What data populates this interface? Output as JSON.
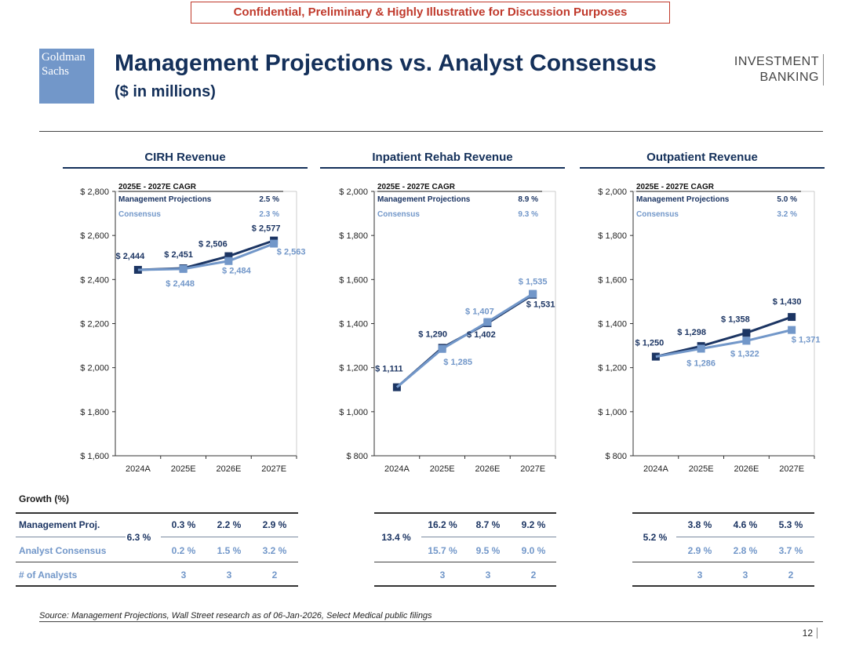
{
  "banner": "Confidential, Preliminary & Highly Illustrative for Discussion Purposes",
  "logo": {
    "line1": "Goldman",
    "line2": "Sachs"
  },
  "header": {
    "title": "Management Projections vs. Analyst Consensus",
    "subtitle": "($ in millions)"
  },
  "brand": {
    "line1": "INVESTMENT",
    "line2": "BANKING"
  },
  "colors": {
    "management": "#1c3563",
    "consensus": "#7297c9",
    "title": "#14305a"
  },
  "chart_data": [
    {
      "type": "line",
      "title": "CIRH Revenue",
      "categories": [
        "2024A",
        "2025E",
        "2026E",
        "2027E"
      ],
      "ylim": [
        1600,
        2800
      ],
      "yticks": [
        1600,
        1800,
        2000,
        2200,
        2400,
        2600,
        2800
      ],
      "ytick_labels": [
        "$ 1,600",
        "$ 1,800",
        "$ 2,000",
        "$ 2,200",
        "$ 2,400",
        "$ 2,600",
        "$ 2,800"
      ],
      "series": [
        {
          "name": "Management Projections",
          "values": [
            2444,
            2451,
            2506,
            2577
          ],
          "labels": [
            "$ 2,444",
            "$ 2,451",
            "$ 2,506",
            "$ 2,577"
          ]
        },
        {
          "name": "Consensus",
          "values": [
            null,
            2448,
            2484,
            2563
          ],
          "labels": [
            "",
            "$ 2,448",
            "$ 2,484",
            "$ 2,563"
          ]
        }
      ],
      "cagr": {
        "header": "2025E - 2027E CAGR",
        "management": "2.5 %",
        "consensus": "2.3 %"
      }
    },
    {
      "type": "line",
      "title": "Inpatient Rehab Revenue",
      "categories": [
        "2024A",
        "2025E",
        "2026E",
        "2027E"
      ],
      "ylim": [
        800,
        2000
      ],
      "yticks": [
        800,
        1000,
        1200,
        1400,
        1600,
        1800,
        2000
      ],
      "ytick_labels": [
        "$ 800",
        "$ 1,000",
        "$ 1,200",
        "$ 1,400",
        "$ 1,600",
        "$ 1,800",
        "$ 2,000"
      ],
      "series": [
        {
          "name": "Management Projections",
          "values": [
            1111,
            1290,
            1402,
            1531
          ],
          "labels": [
            "$ 1,111",
            "$ 1,290",
            "$ 1,402",
            "$ 1,531"
          ]
        },
        {
          "name": "Consensus",
          "values": [
            null,
            1285,
            1407,
            1535
          ],
          "labels": [
            "",
            "$ 1,285",
            "$ 1,407",
            "$ 1,535"
          ]
        }
      ],
      "cagr": {
        "header": "2025E - 2027E CAGR",
        "management": "8.9 %",
        "consensus": "9.3 %"
      }
    },
    {
      "type": "line",
      "title": "Outpatient Revenue",
      "categories": [
        "2024A",
        "2025E",
        "2026E",
        "2027E"
      ],
      "ylim": [
        800,
        2000
      ],
      "yticks": [
        800,
        1000,
        1200,
        1400,
        1600,
        1800,
        2000
      ],
      "ytick_labels": [
        "$ 800",
        "$ 1,000",
        "$ 1,200",
        "$ 1,400",
        "$ 1,600",
        "$ 1,800",
        "$ 2,000"
      ],
      "series": [
        {
          "name": "Management Projections",
          "values": [
            1250,
            1298,
            1358,
            1430
          ],
          "labels": [
            "$ 1,250",
            "$ 1,298",
            "$ 1,358",
            "$ 1,430"
          ]
        },
        {
          "name": "Consensus",
          "values": [
            null,
            1286,
            1322,
            1371
          ],
          "labels": [
            "",
            "$ 1,286",
            "$ 1,322",
            "$ 1,371"
          ]
        }
      ],
      "cagr": {
        "header": "2025E - 2027E CAGR",
        "management": "5.0 %",
        "consensus": "3.2 %"
      }
    }
  ],
  "growth": {
    "heading": "Growth (%)",
    "row_labels": [
      "Management Proj.",
      "Analyst Consensus",
      "# of Analysts"
    ],
    "panels": [
      {
        "hist": "6.3 %",
        "management": [
          "0.3 %",
          "2.2 %",
          "2.9 %"
        ],
        "consensus": [
          "0.2 %",
          "1.5 %",
          "3.2 %"
        ],
        "analysts": [
          "3",
          "3",
          "2"
        ]
      },
      {
        "hist": "13.4 %",
        "management": [
          "16.2 %",
          "8.7 %",
          "9.2 %"
        ],
        "consensus": [
          "15.7 %",
          "9.5 %",
          "9.0 %"
        ],
        "analysts": [
          "3",
          "3",
          "2"
        ]
      },
      {
        "hist": "5.2 %",
        "management": [
          "3.8 %",
          "4.6 %",
          "5.3 %"
        ],
        "consensus": [
          "2.9 %",
          "2.8 %",
          "3.7 %"
        ],
        "analysts": [
          "3",
          "3",
          "2"
        ]
      }
    ]
  },
  "source": "Source: Management Projections, Wall Street research as of 06-Jan-2026, Select Medical public filings",
  "page_number": "12"
}
